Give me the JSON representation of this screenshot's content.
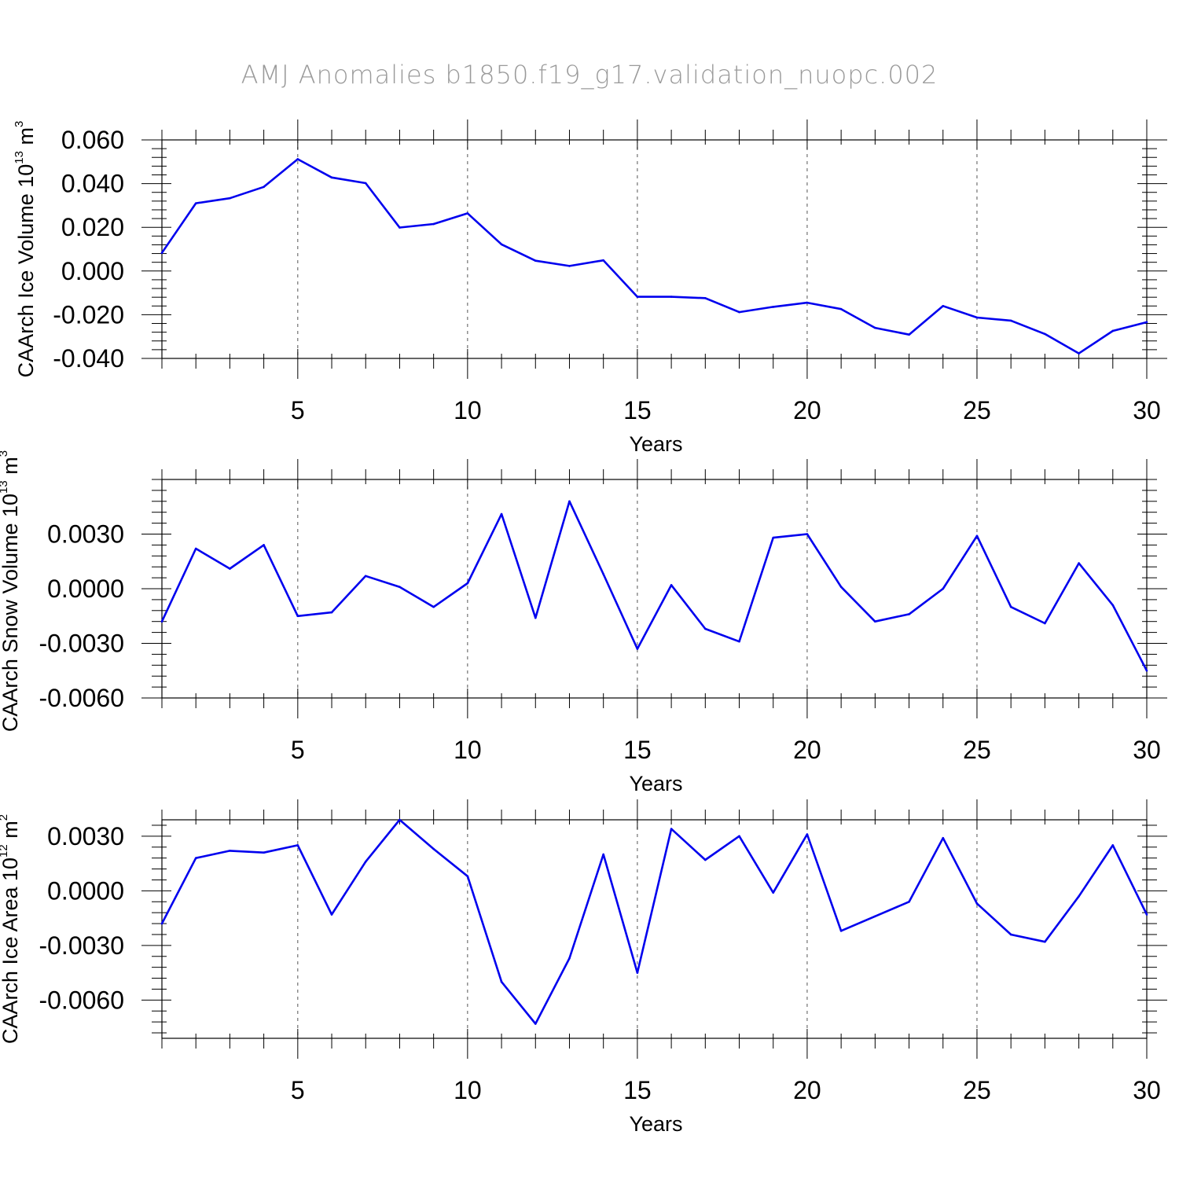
{
  "title": "AMJ Anomalies b1850.f19_g17.validation_nuopc.002",
  "colors": {
    "line": "#0000ee",
    "axis": "#000000",
    "grid": "#555555",
    "title": "#9a9a9a"
  },
  "chart_data": [
    {
      "type": "line",
      "title": "AMJ Anomalies b1850.f19_g17.validation_nuopc.002",
      "xlabel": "Years",
      "ylabel": "CAArch Ice Volume 10",
      "ylabel_exp": "13",
      "ylabel_unit": " m",
      "ylabel_unit_exp": "3",
      "xlim": [
        1,
        30
      ],
      "ylim": [
        -0.04,
        0.06
      ],
      "xticks": [
        5,
        10,
        15,
        20,
        25,
        30
      ],
      "xtick_labels": [
        "5",
        "10",
        "15",
        "20",
        "25",
        "30"
      ],
      "yticks": [
        0.06,
        0.04,
        0.02,
        0.0,
        -0.02,
        -0.04
      ],
      "ytick_labels": [
        "0.060",
        "0.040",
        "0.020",
        "0.000",
        "-0.020",
        "-0.040"
      ],
      "grid": "vertical dashed at major x ticks",
      "x": [
        1,
        2,
        3,
        4,
        5,
        6,
        7,
        8,
        9,
        10,
        11,
        12,
        13,
        14,
        15,
        16,
        17,
        18,
        19,
        20,
        21,
        22,
        23,
        24,
        25,
        26,
        27,
        28,
        29,
        30
      ],
      "series": [
        {
          "name": "CAArch Ice Volume",
          "values": [
            0.0083,
            0.031,
            0.0333,
            0.0385,
            0.0512,
            0.0428,
            0.0402,
            0.0199,
            0.0215,
            0.0264,
            0.0122,
            0.0047,
            0.0023,
            0.0049,
            -0.0118,
            -0.0118,
            -0.0124,
            -0.0188,
            -0.0164,
            -0.0145,
            -0.0174,
            -0.026,
            -0.0291,
            -0.016,
            -0.0213,
            -0.0227,
            -0.0288,
            -0.0377,
            -0.0274,
            -0.0234
          ]
        }
      ]
    },
    {
      "type": "line",
      "xlabel": "Years",
      "ylabel": "CAArch Snow Volume 10",
      "ylabel_exp": "13",
      "ylabel_unit": " m",
      "ylabel_unit_exp": "3",
      "xlim": [
        1,
        30
      ],
      "ylim": [
        -0.006,
        0.006
      ],
      "xticks": [
        5,
        10,
        15,
        20,
        25,
        30
      ],
      "xtick_labels": [
        "5",
        "10",
        "15",
        "20",
        "25",
        "30"
      ],
      "yticks": [
        0.003,
        0.0,
        -0.003,
        -0.006
      ],
      "ytick_labels": [
        "0.0030",
        "0.0000",
        "-0.0030",
        "-0.0060"
      ],
      "grid": "vertical dashed at major x ticks",
      "x": [
        1,
        2,
        3,
        4,
        5,
        6,
        7,
        8,
        9,
        10,
        11,
        12,
        13,
        14,
        15,
        16,
        17,
        18,
        19,
        20,
        21,
        22,
        23,
        24,
        25,
        26,
        27,
        28,
        29,
        30
      ],
      "series": [
        {
          "name": "CAArch Snow Volume",
          "values": [
            -0.0018,
            0.0022,
            0.0011,
            0.0024,
            -0.0015,
            -0.0013,
            0.0007,
            0.0001,
            -0.001,
            0.0003,
            0.0041,
            -0.0016,
            0.0048,
            0.0008,
            -0.0033,
            0.0002,
            -0.0022,
            -0.0029,
            0.0028,
            0.003,
            0.0001,
            -0.0018,
            -0.0014,
            0.0,
            0.0029,
            -0.001,
            -0.0019,
            0.0014,
            -0.0009,
            -0.0045
          ]
        }
      ]
    },
    {
      "type": "line",
      "xlabel": "Years",
      "ylabel": "CAArch Ice Area 10",
      "ylabel_exp": "12",
      "ylabel_unit": " m",
      "ylabel_unit_exp": "2",
      "xlim": [
        1,
        30
      ],
      "ylim": [
        -0.0081,
        0.0039
      ],
      "xticks": [
        5,
        10,
        15,
        20,
        25,
        30
      ],
      "xtick_labels": [
        "5",
        "10",
        "15",
        "20",
        "25",
        "30"
      ],
      "yticks": [
        0.003,
        0.0,
        -0.003,
        -0.006
      ],
      "ytick_labels": [
        "0.0030",
        "0.0000",
        "-0.0030",
        "-0.0060"
      ],
      "grid": "vertical dashed at major x ticks",
      "x": [
        1,
        2,
        3,
        4,
        5,
        6,
        7,
        8,
        9,
        10,
        11,
        12,
        13,
        14,
        15,
        16,
        17,
        18,
        19,
        20,
        21,
        22,
        23,
        24,
        25,
        26,
        27,
        28,
        29,
        30
      ],
      "series": [
        {
          "name": "CAArch Ice Area",
          "values": [
            -0.0018,
            0.0018,
            0.0022,
            0.0021,
            0.0025,
            -0.0013,
            0.0016,
            0.0039,
            0.0023,
            0.0008,
            -0.005,
            -0.0073,
            -0.0037,
            0.002,
            -0.0045,
            0.0034,
            0.0017,
            0.003,
            -0.0001,
            0.0031,
            -0.0022,
            -0.0014,
            -0.0006,
            0.0029,
            -0.0007,
            -0.0024,
            -0.0028,
            -0.0003,
            0.0025,
            -0.0013
          ]
        }
      ]
    }
  ]
}
